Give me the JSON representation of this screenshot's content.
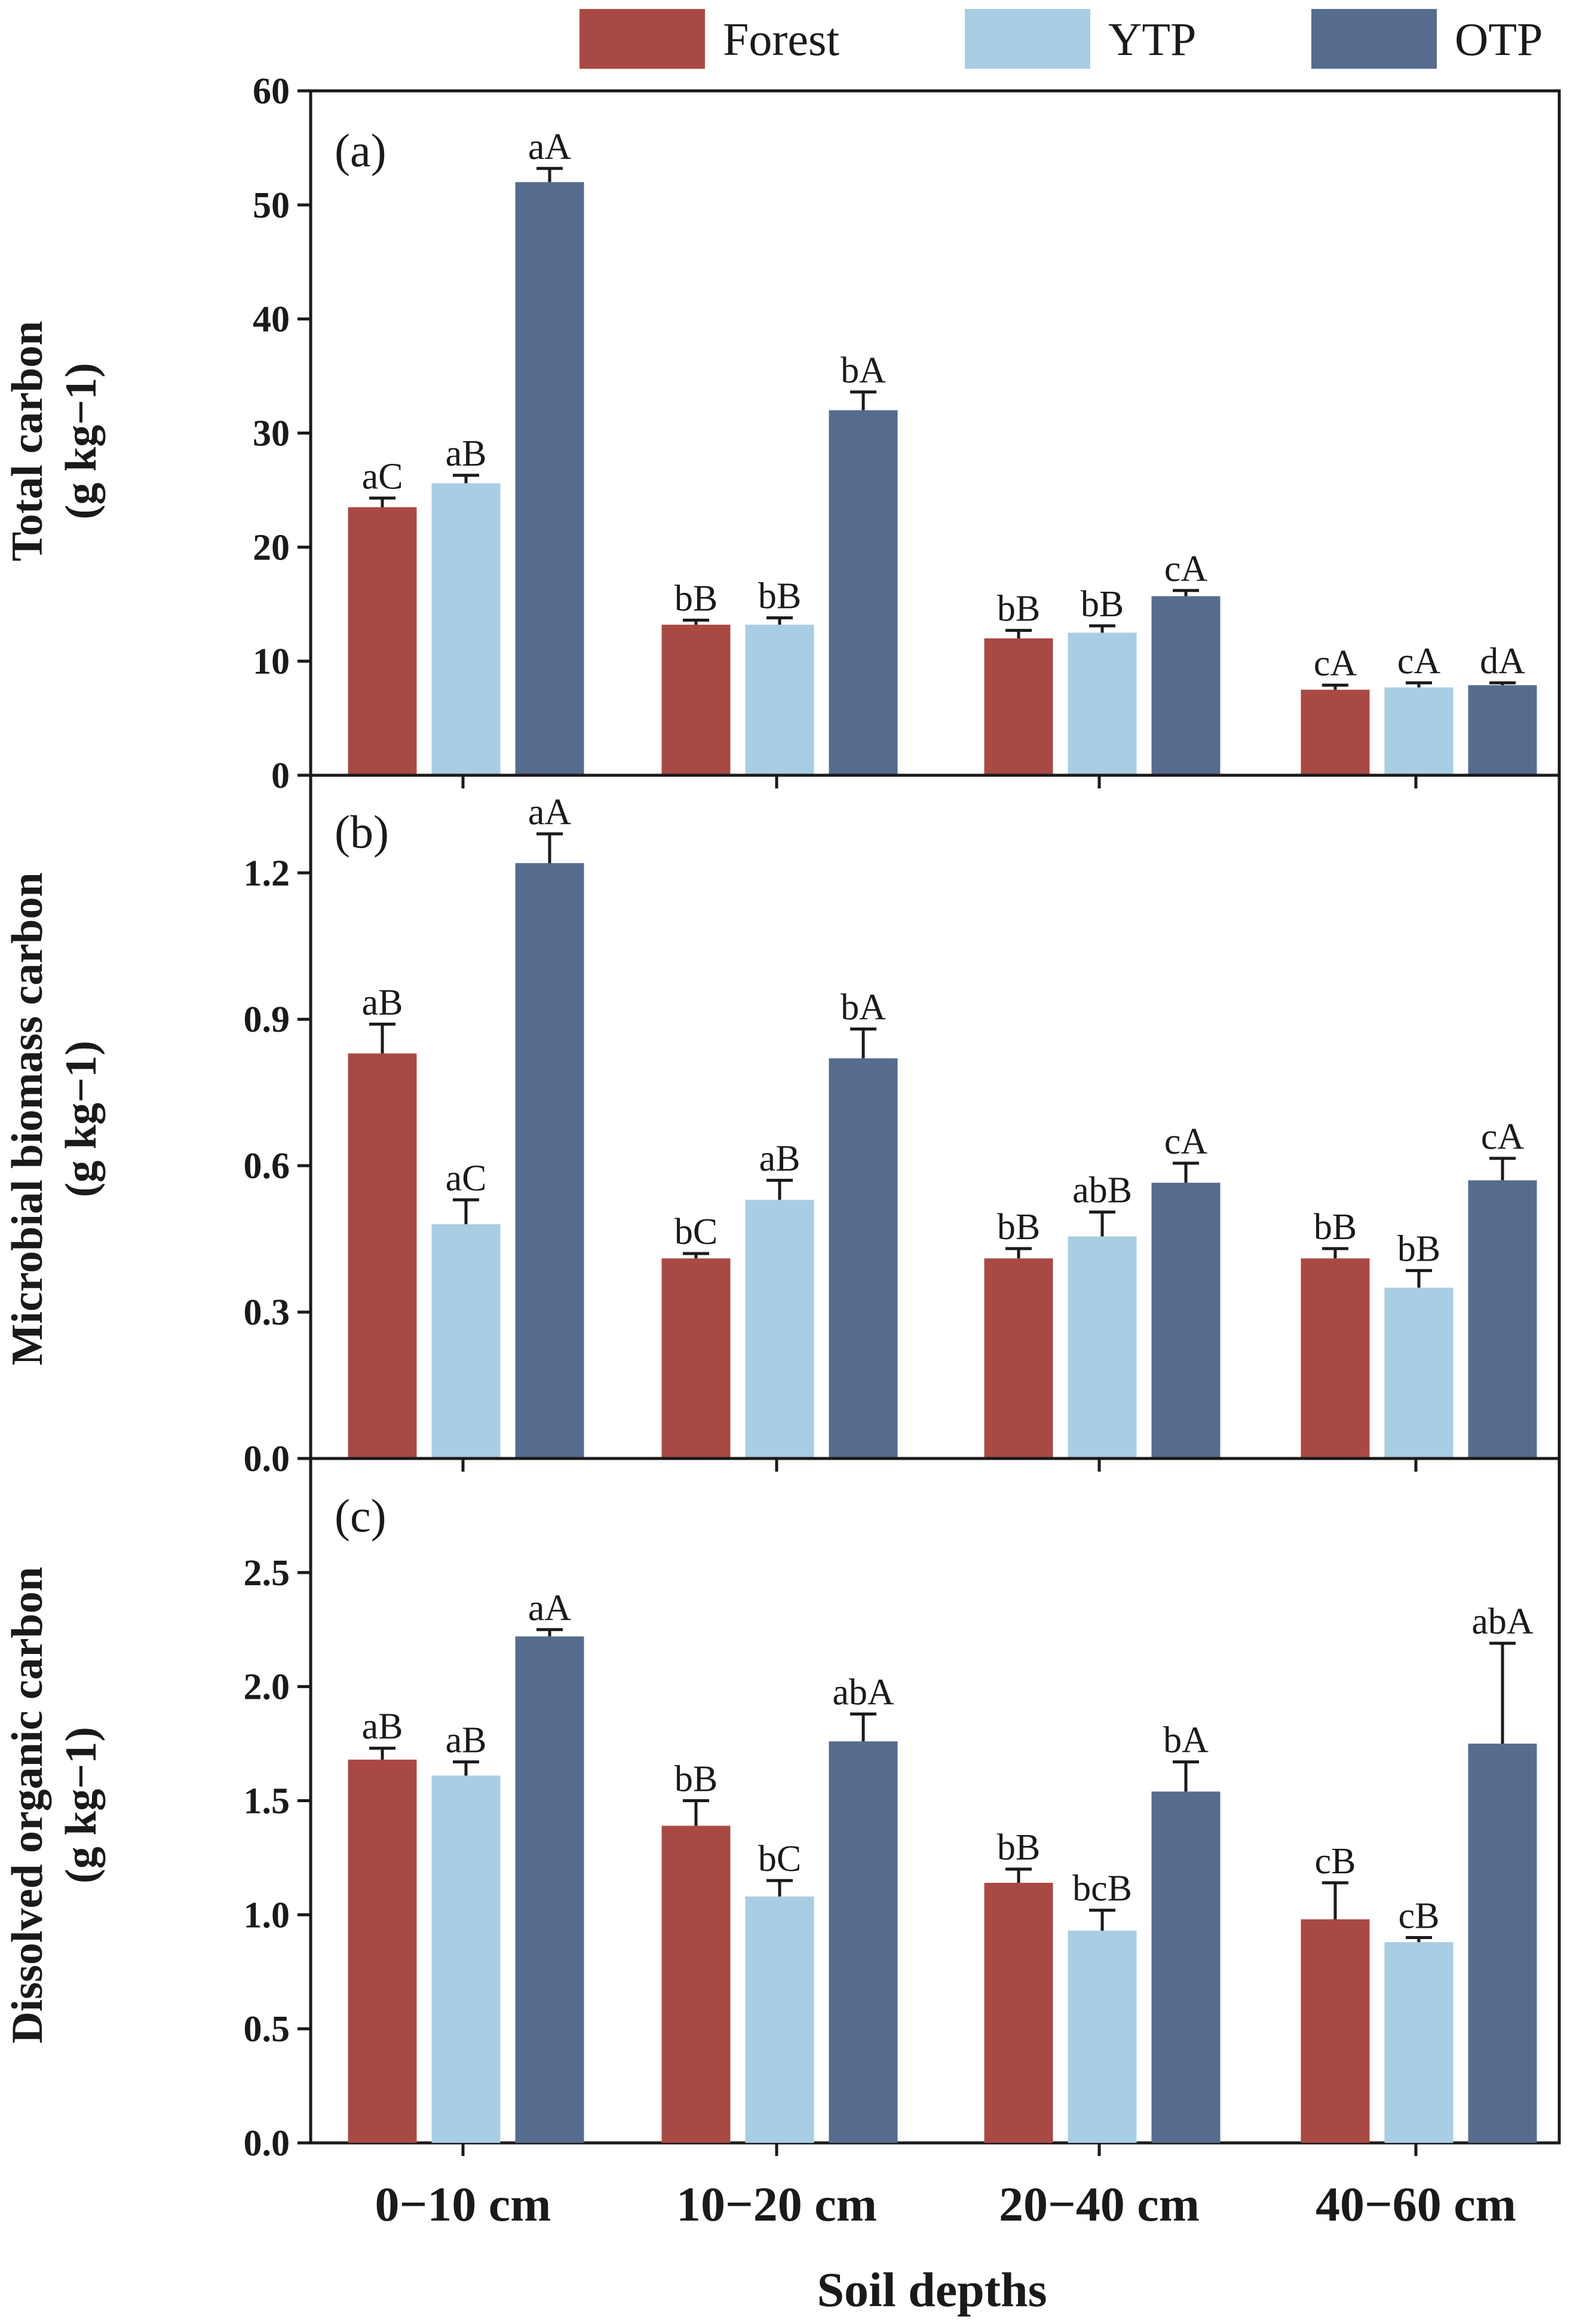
{
  "chart_data": [
    {
      "type": "bar",
      "panel": "(a)",
      "ylabel": "Total carbon",
      "yunit": "(g kg−1)",
      "ylim": [
        0,
        60
      ],
      "yticks": [
        "0",
        "10",
        "20",
        "30",
        "40",
        "50",
        "60"
      ],
      "categories": [
        "0−10 cm",
        "10−20 cm",
        "20−40 cm",
        "40−60 cm"
      ],
      "series": [
        {
          "name": "Forest",
          "color": "#a94944",
          "values": [
            23.5,
            13.2,
            12.0,
            7.5
          ],
          "errors": [
            0.8,
            0.4,
            0.7,
            0.4
          ],
          "labels": [
            "aC",
            "bB",
            "bB",
            "cA"
          ]
        },
        {
          "name": "YTP",
          "color": "#a9cde3",
          "values": [
            25.6,
            13.2,
            12.5,
            7.7
          ],
          "errors": [
            0.7,
            0.6,
            0.6,
            0.4
          ],
          "labels": [
            "aB",
            "bB",
            "bB",
            "cA"
          ]
        },
        {
          "name": "OTP",
          "color": "#566c8f",
          "values": [
            52.0,
            32.0,
            15.7,
            7.9
          ],
          "errors": [
            1.2,
            1.6,
            0.5,
            0.2
          ],
          "labels": [
            "aA",
            "bA",
            "cA",
            "dA"
          ]
        }
      ]
    },
    {
      "type": "bar",
      "panel": "(b)",
      "ylabel": "Microbial biomass carbon",
      "yunit": "(g kg−1)",
      "ylim": [
        0,
        1.4
      ],
      "yticks": [
        "0.0",
        "0.3",
        "0.6",
        "0.9",
        "1.2"
      ],
      "categories": [
        "0−10 cm",
        "10−20 cm",
        "20−40 cm",
        "40−60 cm"
      ],
      "series": [
        {
          "name": "Forest",
          "color": "#a94944",
          "values": [
            0.83,
            0.41,
            0.41,
            0.41
          ],
          "errors": [
            0.06,
            0.01,
            0.02,
            0.02
          ],
          "labels": [
            "aB",
            "bC",
            "bB",
            "bB"
          ]
        },
        {
          "name": "YTP",
          "color": "#a9cde3",
          "values": [
            0.48,
            0.53,
            0.455,
            0.35
          ],
          "errors": [
            0.05,
            0.04,
            0.05,
            0.035
          ],
          "labels": [
            "aC",
            "aB",
            "abB",
            "bB"
          ]
        },
        {
          "name": "OTP",
          "color": "#566c8f",
          "values": [
            1.22,
            0.82,
            0.565,
            0.57
          ],
          "errors": [
            0.06,
            0.06,
            0.04,
            0.045
          ],
          "labels": [
            "aA",
            "bA",
            "cA",
            "cA"
          ]
        }
      ]
    },
    {
      "type": "bar",
      "panel": "(c)",
      "ylabel": "Dissolved organic carbon",
      "yunit": "(g kg−1)",
      "ylim": [
        0,
        3.0
      ],
      "yticks": [
        "0.0",
        "0.5",
        "1.0",
        "1.5",
        "2.0",
        "2.5"
      ],
      "categories": [
        "0−10 cm",
        "10−20 cm",
        "20−40 cm",
        "40−60 cm"
      ],
      "series": [
        {
          "name": "Forest",
          "color": "#a94944",
          "values": [
            1.68,
            1.39,
            1.14,
            0.98
          ],
          "errors": [
            0.05,
            0.11,
            0.06,
            0.16
          ],
          "labels": [
            "aB",
            "bB",
            "bB",
            "cB"
          ]
        },
        {
          "name": "YTP",
          "color": "#a9cde3",
          "values": [
            1.61,
            1.08,
            0.93,
            0.88
          ],
          "errors": [
            0.06,
            0.07,
            0.09,
            0.02
          ],
          "labels": [
            "aB",
            "bC",
            "bcB",
            "cB"
          ]
        },
        {
          "name": "OTP",
          "color": "#566c8f",
          "values": [
            2.22,
            1.76,
            1.54,
            1.75
          ],
          "errors": [
            0.03,
            0.12,
            0.13,
            0.44
          ],
          "labels": [
            "aA",
            "abA",
            "bA",
            "abA"
          ]
        }
      ]
    }
  ],
  "legend": [
    "Forest",
    "YTP",
    "OTP"
  ],
  "xlabel": "Soil depths",
  "category_labels": [
    "0−10 cm",
    "10−20 cm",
    "20−40 cm",
    "40−60 cm"
  ]
}
